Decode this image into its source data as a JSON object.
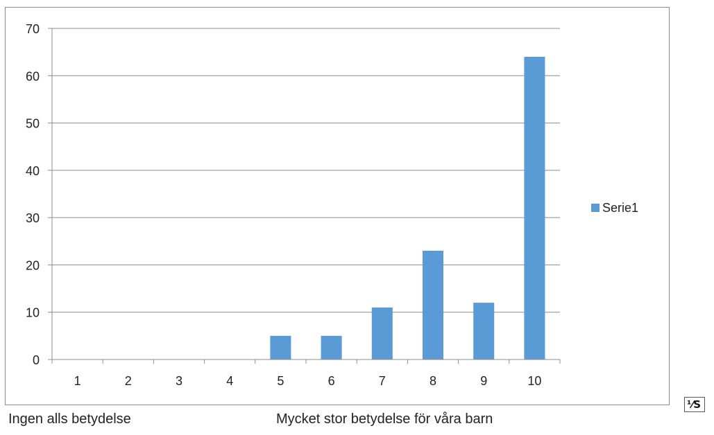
{
  "chart_data": {
    "type": "bar",
    "categories": [
      "1",
      "2",
      "3",
      "4",
      "5",
      "6",
      "7",
      "8",
      "9",
      "10"
    ],
    "series": [
      {
        "name": "Serie1",
        "values": [
          0,
          0,
          0,
          0,
          5,
          5,
          11,
          23,
          12,
          64
        ],
        "color": "#5b9bd5"
      }
    ],
    "y_ticks": [
      "0",
      "10",
      "20",
      "30",
      "40",
      "50",
      "60",
      "70"
    ],
    "ylim": [
      0,
      70
    ],
    "grid": true,
    "legend_position": "right",
    "title": "",
    "xlabel": "",
    "ylabel": ""
  },
  "captions": {
    "left": "Ingen alls betydelse",
    "right": "Mycket stor betydelse för våra barn"
  },
  "corner_icon": {
    "icon": "paste-options-icon"
  }
}
